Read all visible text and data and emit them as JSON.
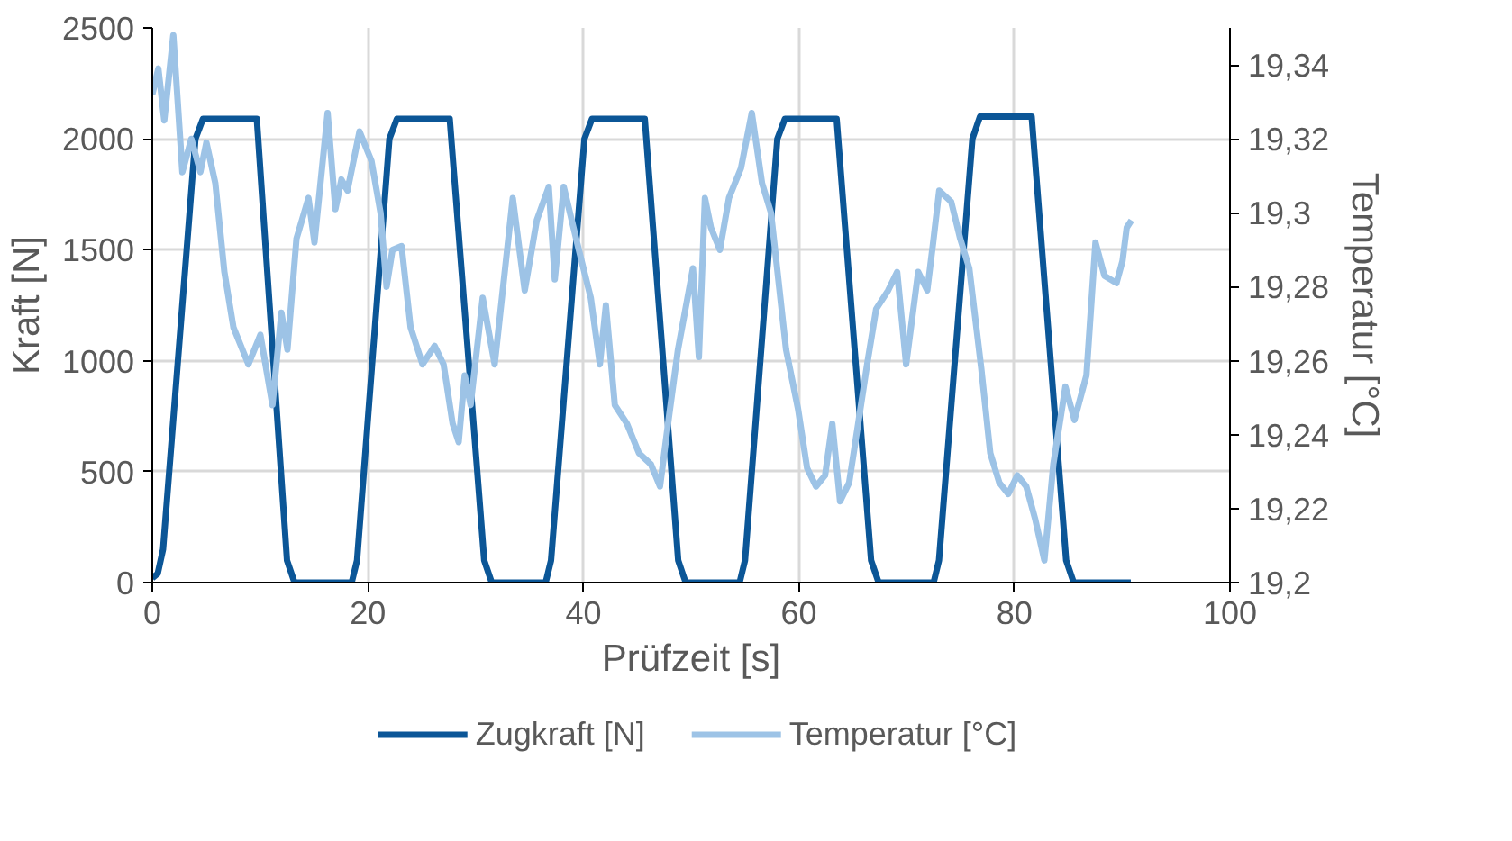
{
  "chart_data": {
    "type": "line",
    "xlabel": "Prüfzeit [s]",
    "ylabel": "Kraft [N]",
    "y2label": "Temperatur [°C]",
    "xlim": [
      0,
      100
    ],
    "xticks": [
      0,
      20,
      40,
      60,
      80,
      100
    ],
    "ylim": [
      0,
      2500
    ],
    "yticks": [
      0,
      500,
      1000,
      1500,
      2000,
      2500
    ],
    "y2lim": [
      19.2,
      19.35
    ],
    "y2ticks": [
      {
        "value": 19.2,
        "label": "19,2"
      },
      {
        "value": 19.22,
        "label": "19,22"
      },
      {
        "value": 19.24,
        "label": "19,24"
      },
      {
        "value": 19.26,
        "label": "19,26"
      },
      {
        "value": 19.28,
        "label": "19,28"
      },
      {
        "value": 19.3,
        "label": "19,3"
      },
      {
        "value": 19.32,
        "label": "19,32"
      },
      {
        "value": 19.34,
        "label": "19,34"
      }
    ],
    "grid": true,
    "legend": "bottom",
    "marker": "none",
    "line_style": "solid",
    "series": [
      {
        "name": "Zugkraft [N]",
        "color": "#0b5697",
        "x": [
          0,
          0.5,
          1,
          4,
          4.7,
          9.7,
          12.5,
          13.2,
          18.5,
          19,
          22,
          22.7,
          27.6,
          30.8,
          31.5,
          36.5,
          37,
          40.1,
          40.8,
          45.7,
          48.8,
          49.5,
          54.5,
          55,
          58,
          58.7,
          63.5,
          66.7,
          67.4,
          72.5,
          73,
          76.1,
          76.8,
          81.6,
          84.8,
          85.5,
          90.8
        ],
        "values": [
          20,
          40,
          150,
          2000,
          2090,
          2090,
          100,
          0,
          0,
          100,
          2000,
          2090,
          2090,
          100,
          0,
          0,
          100,
          2000,
          2090,
          2090,
          100,
          0,
          0,
          100,
          2000,
          2090,
          2090,
          100,
          0,
          0,
          100,
          2000,
          2100,
          2100,
          100,
          0,
          0
        ]
      },
      {
        "name": "Temperatur [°C]",
        "color": "#9dc3e6",
        "axis": "y2",
        "x": [
          0,
          0.56,
          1.11,
          1.95,
          2.79,
          3.62,
          4.46,
          5.02,
          5.85,
          6.69,
          7.53,
          8.92,
          10.03,
          11.15,
          11.98,
          12.54,
          13.38,
          14.49,
          15.05,
          16.27,
          16.99,
          17.55,
          18.11,
          19.23,
          20.34,
          21.18,
          21.74,
          22.29,
          23.13,
          23.97,
          25.08,
          26.2,
          27.03,
          27.87,
          28.43,
          28.99,
          29.54,
          30.66,
          31.77,
          33.45,
          34.56,
          35.68,
          36.79,
          37.35,
          38.18,
          39.58,
          40.69,
          41.53,
          42.09,
          42.92,
          44.04,
          45.16,
          46.27,
          47.11,
          47.95,
          48.78,
          50.17,
          50.72,
          51.28,
          51.84,
          52.67,
          53.51,
          54.62,
          55.63,
          56.58,
          57.41,
          58.81,
          59.92,
          60.76,
          61.59,
          62.43,
          63.1,
          63.82,
          64.66,
          65.5,
          66.33,
          67.17,
          68.28,
          69.12,
          69.95,
          71.07,
          71.91,
          72.46,
          73.02,
          74.13,
          74.97,
          75.81,
          76.92,
          77.76,
          78.6,
          79.43,
          80.27,
          81.1,
          81.94,
          82.78,
          83.61,
          84.73,
          85.57,
          86.68,
          87.52,
          88.35,
          89.47,
          90.03,
          90.42,
          90.86
        ],
        "values": [
          19.332,
          19.339,
          19.325,
          19.348,
          19.311,
          19.32,
          19.311,
          19.319,
          19.308,
          19.284,
          19.269,
          19.259,
          19.267,
          19.248,
          19.273,
          19.263,
          19.293,
          19.304,
          19.292,
          19.327,
          19.301,
          19.309,
          19.306,
          19.322,
          19.314,
          19.3,
          19.28,
          19.29,
          19.291,
          19.269,
          19.259,
          19.264,
          19.259,
          19.243,
          19.238,
          19.256,
          19.248,
          19.277,
          19.259,
          19.304,
          19.279,
          19.298,
          19.307,
          19.282,
          19.307,
          19.29,
          19.277,
          19.259,
          19.275,
          19.248,
          19.243,
          19.235,
          19.232,
          19.226,
          19.245,
          19.263,
          19.285,
          19.261,
          19.304,
          19.296,
          19.29,
          19.304,
          19.312,
          19.327,
          19.308,
          19.3,
          19.263,
          19.247,
          19.231,
          19.226,
          19.229,
          19.243,
          19.222,
          19.227,
          19.243,
          19.259,
          19.274,
          19.279,
          19.284,
          19.259,
          19.284,
          19.279,
          19.292,
          19.306,
          19.303,
          19.293,
          19.285,
          19.258,
          19.235,
          19.227,
          19.224,
          19.229,
          19.226,
          19.217,
          19.206,
          19.232,
          19.253,
          19.244,
          19.256,
          19.292,
          19.283,
          19.281,
          19.287,
          19.296,
          19.298
        ]
      }
    ]
  }
}
